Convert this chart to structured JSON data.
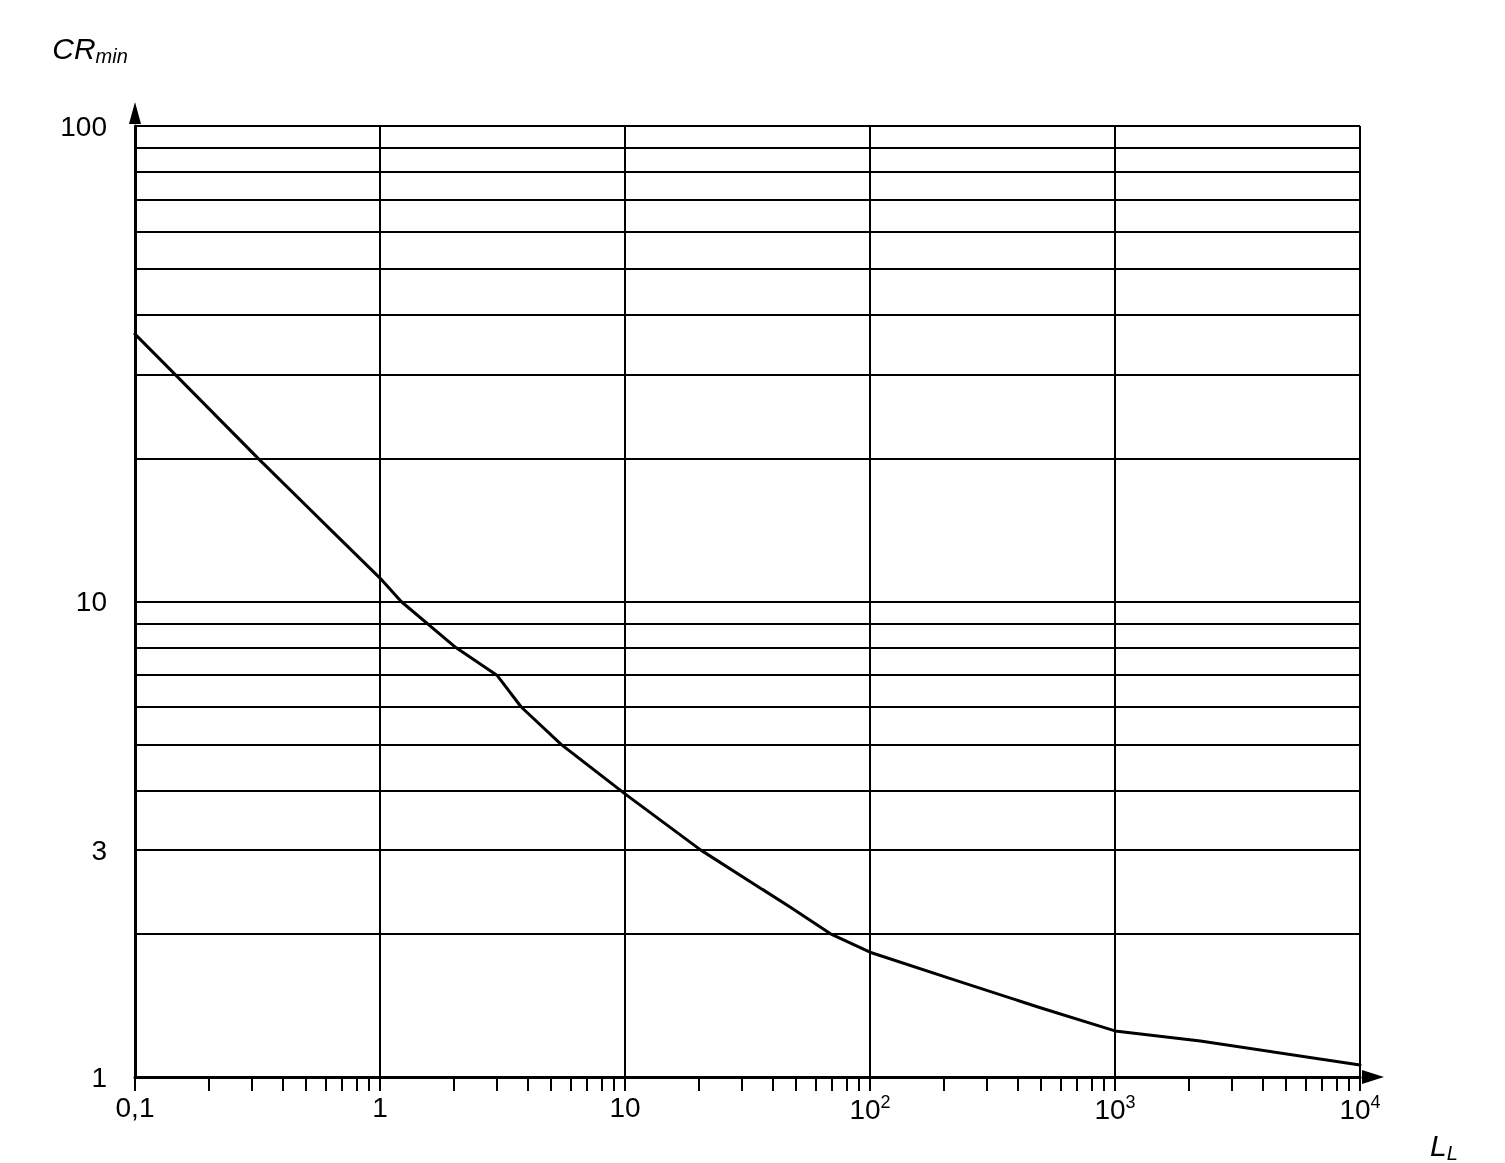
{
  "chart_data": {
    "type": "line",
    "xlabel": "L$_{L}$",
    "ylabel": "CR$_{min}$",
    "log": "xy",
    "grid": true,
    "marker": "none",
    "line_style": "solid",
    "xlim": [
      0.1,
      10000
    ],
    "ylim": [
      1,
      100
    ],
    "xticks": [
      {
        "value": 0.1,
        "label": "0,1"
      },
      {
        "value": 0.2,
        "label": null
      },
      {
        "value": 0.3,
        "label": null
      },
      {
        "value": 0.4,
        "label": null
      },
      {
        "value": 0.5,
        "label": null
      },
      {
        "value": 0.6,
        "label": null
      },
      {
        "value": 0.7,
        "label": null
      },
      {
        "value": 0.8,
        "label": null
      },
      {
        "value": 0.9,
        "label": null
      },
      1,
      {
        "value": 2,
        "label": null
      },
      {
        "value": 3,
        "label": null
      },
      {
        "value": 4,
        "label": null
      },
      {
        "value": 5,
        "label": null
      },
      {
        "value": 6,
        "label": null
      },
      {
        "value": 7,
        "label": null
      },
      {
        "value": 8,
        "label": null
      },
      {
        "value": 9,
        "label": null
      },
      10,
      {
        "value": 20,
        "label": null
      },
      {
        "value": 30,
        "label": null
      },
      {
        "value": 40,
        "label": null
      },
      {
        "value": 50,
        "label": null
      },
      {
        "value": 60,
        "label": null
      },
      {
        "value": 70,
        "label": null
      },
      {
        "value": 80,
        "label": null
      },
      {
        "value": 90,
        "label": null
      },
      {
        "value": 100,
        "label": "10$^{2}$"
      },
      {
        "value": 200,
        "label": null
      },
      {
        "value": 300,
        "label": null
      },
      {
        "value": 400,
        "label": null
      },
      {
        "value": 500,
        "label": null
      },
      {
        "value": 600,
        "label": null
      },
      {
        "value": 700,
        "label": null
      },
      {
        "value": 800,
        "label": null
      },
      {
        "value": 900,
        "label": null
      },
      {
        "value": 1000,
        "label": "10$^{3}$"
      },
      {
        "value": 2000,
        "label": null
      },
      {
        "value": 3000,
        "label": null
      },
      {
        "value": 4000,
        "label": null
      },
      {
        "value": 5000,
        "label": null
      },
      {
        "value": 6000,
        "label": null
      },
      {
        "value": 7000,
        "label": null
      },
      {
        "value": 8000,
        "label": null
      },
      {
        "value": 9000,
        "label": null
      },
      {
        "value": 10000,
        "label": "10$^{4}$"
      }
    ],
    "yticks": [
      1,
      {
        "value": 2,
        "label": null
      },
      3,
      {
        "value": 4,
        "label": null
      },
      {
        "value": 5,
        "label": null
      },
      {
        "value": 6,
        "label": null
      },
      {
        "value": 7,
        "label": null
      },
      {
        "value": 8,
        "label": null
      },
      {
        "value": 9,
        "label": null
      },
      10,
      {
        "value": 20,
        "label": null
      },
      {
        "value": 30,
        "label": null
      },
      {
        "value": 40,
        "label": null
      },
      {
        "value": 50,
        "label": null
      },
      {
        "value": 60,
        "label": null
      },
      {
        "value": 70,
        "label": null
      },
      {
        "value": 80,
        "label": null
      },
      {
        "value": 90,
        "label": null
      },
      100
    ],
    "series": [
      {
        "color": "#000000",
        "x": [
          0.1,
          0.146,
          0.318,
          0.625,
          1,
          1.22,
          2.04,
          3,
          3.77,
          5.5,
          10,
          20.4,
          47,
          69,
          100,
          213,
          492,
          1000,
          2230,
          10000
        ],
        "values": [
          36.5,
          30,
          20,
          14.2,
          11.2,
          10,
          8,
          7,
          6,
          5,
          3.94,
          3,
          2.28,
          2,
          1.83,
          1.61,
          1.4,
          1.25,
          1.19,
          1.06
        ]
      }
    ]
  }
}
